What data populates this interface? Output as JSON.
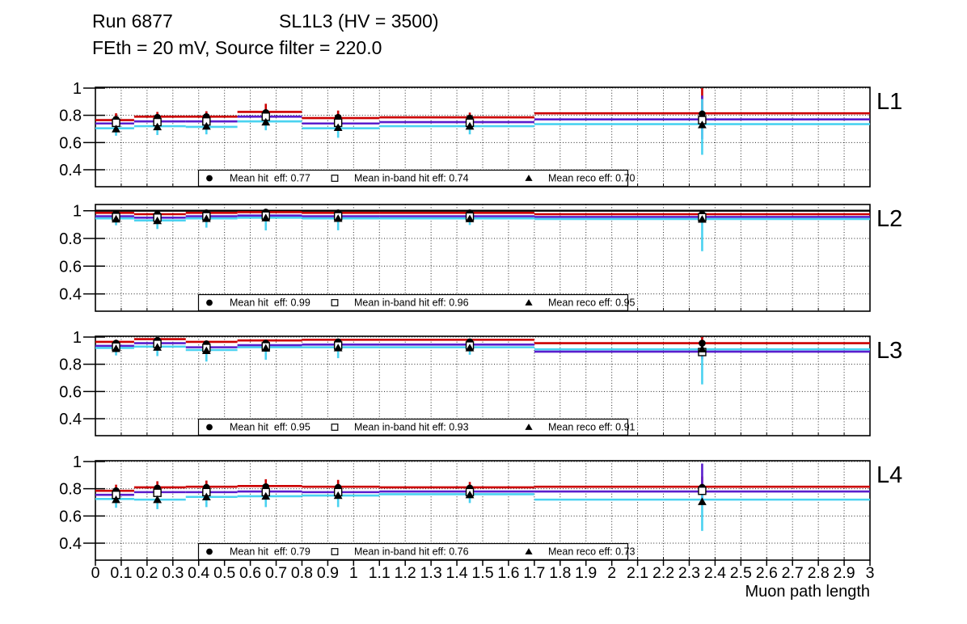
{
  "header": {
    "run": "Run 6877",
    "config": "SL1L3 (HV = 3500)",
    "subtitle": "FEth = 20 mV, Source filter = 220.0"
  },
  "chart_data": {
    "type": "line",
    "title": "Run 6877 SL1L3 (HV = 3500) FEth = 20 mV, Source filter = 220.0",
    "xlabel": "Muon path length",
    "ylabel": "",
    "grid": true,
    "x_range": [
      0,
      3
    ],
    "x_tick_labels": [
      "0",
      "0.1",
      "0.2",
      "0.3",
      "0.4",
      "0.5",
      "0.6",
      "0.7",
      "0.8",
      "0.9",
      "1",
      "1.1",
      "1.2",
      "1.3",
      "1.4",
      "1.5",
      "1.6",
      "1.7",
      "1.8",
      "1.9",
      "2",
      "2.1",
      "2.2",
      "2.3",
      "2.4",
      "2.5",
      "2.6",
      "2.7",
      "2.8",
      "2.9",
      "3"
    ],
    "y_ticks": [
      0.4,
      0.6,
      0.8,
      1
    ],
    "y_tick_labels": [
      "0.4",
      "0.6",
      "0.8",
      "1"
    ],
    "bin_edges": [
      0,
      0.15,
      0.35,
      0.55,
      0.8,
      1.1,
      1.7,
      3.0
    ],
    "marker_x": [
      0.08,
      0.24,
      0.43,
      0.66,
      0.94,
      1.45,
      2.35
    ],
    "series_styles": [
      {
        "name": "hit",
        "marker": "circle",
        "line_color": "#cc0000",
        "marker_color": "#000000"
      },
      {
        "name": "inband",
        "marker": "square",
        "line_color": "#5a1ecd",
        "marker_color": "#000000"
      },
      {
        "name": "reco",
        "marker": "triangle",
        "line_color": "#4ad2f0",
        "marker_color": "#000000"
      }
    ],
    "panels": [
      {
        "label": "L1",
        "y_range": [
          0.275,
          1.006
        ],
        "ref_line": false,
        "legend": [
          {
            "marker": "circle",
            "text": "Mean hit  eff: 0.77"
          },
          {
            "marker": "square",
            "text": "Mean in-band hit eff: 0.74"
          },
          {
            "marker": "triangle",
            "text": "Mean reco eff: 0.70"
          }
        ],
        "series": [
          {
            "name": "hit",
            "line": [
              0.765,
              0.79,
              0.79,
              0.825,
              0.78,
              0.785,
              0.815
            ],
            "y": [
              0.77,
              0.785,
              0.79,
              0.82,
              0.785,
              0.78,
              0.81
            ],
            "elo": [
              0.05,
              0.04,
              0.04,
              0.05,
              0.05,
              0.04,
              0.07
            ],
            "ehi": [
              0.045,
              0.04,
              0.04,
              0.065,
              0.05,
              0.04,
              0.19
            ]
          },
          {
            "name": "inband",
            "line": [
              0.74,
              0.755,
              0.755,
              0.79,
              0.74,
              0.75,
              0.77
            ],
            "y": [
              0.745,
              0.75,
              0.755,
              0.79,
              0.745,
              0.745,
              0.765
            ],
            "elo": [
              0.045,
              0.045,
              0.045,
              0.05,
              0.05,
              0.045,
              0.14
            ],
            "ehi": [
              0.04,
              0.04,
              0.04,
              0.05,
              0.04,
              0.04,
              0.18
            ]
          },
          {
            "name": "reco",
            "line": [
              0.705,
              0.72,
              0.715,
              0.755,
              0.705,
              0.72,
              0.735
            ],
            "y": [
              0.7,
              0.715,
              0.72,
              0.75,
              0.71,
              0.72,
              0.73
            ],
            "elo": [
              0.05,
              0.06,
              0.06,
              0.06,
              0.075,
              0.06,
              0.22
            ],
            "ehi": [
              0.05,
              0.05,
              0.05,
              0.055,
              0.05,
              0.05,
              0.19
            ]
          }
        ]
      },
      {
        "label": "L2",
        "y_range": [
          0.275,
          1.045
        ],
        "ref_line": true,
        "legend": [
          {
            "marker": "circle",
            "text": "Mean hit  eff: 0.99"
          },
          {
            "marker": "square",
            "text": "Mean in-band hit eff: 0.96"
          },
          {
            "marker": "triangle",
            "text": "Mean reco eff: 0.95"
          }
        ],
        "series": [
          {
            "name": "hit",
            "line": [
              0.985,
              0.975,
              0.985,
              0.99,
              0.985,
              0.985,
              0.975
            ],
            "y": [
              0.98,
              0.975,
              0.985,
              0.99,
              0.985,
              0.985,
              0.975
            ],
            "elo": [
              0.02,
              0.02,
              0.012,
              0.01,
              0.012,
              0.012,
              0.025
            ],
            "ehi": [
              0.012,
              0.012,
              0.008,
              0.006,
              0.008,
              0.008,
              0.015
            ]
          },
          {
            "name": "inband",
            "line": [
              0.96,
              0.95,
              0.96,
              0.965,
              0.96,
              0.96,
              0.955
            ],
            "y": [
              0.955,
              0.95,
              0.96,
              0.965,
              0.96,
              0.958,
              0.953
            ],
            "elo": [
              0.025,
              0.03,
              0.02,
              0.018,
              0.018,
              0.018,
              0.035
            ],
            "ehi": [
              0.02,
              0.025,
              0.015,
              0.012,
              0.012,
              0.012,
              0.025
            ]
          },
          {
            "name": "reco",
            "line": [
              0.945,
              0.93,
              0.945,
              0.95,
              0.945,
              0.945,
              0.94
            ],
            "y": [
              0.94,
              0.928,
              0.943,
              0.948,
              0.944,
              0.942,
              0.938
            ],
            "elo": [
              0.045,
              0.06,
              0.065,
              0.09,
              0.085,
              0.045,
              0.23
            ],
            "ehi": [
              0.025,
              0.03,
              0.02,
              0.015,
              0.015,
              0.02,
              0.03
            ]
          }
        ]
      },
      {
        "label": "L3",
        "y_range": [
          0.275,
          1.006
        ],
        "ref_line": false,
        "legend": [
          {
            "marker": "circle",
            "text": "Mean hit  eff: 0.95"
          },
          {
            "marker": "square",
            "text": "Mean in-band hit eff: 0.93"
          },
          {
            "marker": "triangle",
            "text": "Mean reco eff: 0.91"
          }
        ],
        "series": [
          {
            "name": "hit",
            "line": [
              0.965,
              0.985,
              0.965,
              0.975,
              0.98,
              0.98,
              0.955
            ],
            "y": [
              0.955,
              0.975,
              0.95,
              0.955,
              0.965,
              0.965,
              0.955
            ],
            "elo": [
              0.03,
              0.02,
              0.03,
              0.027,
              0.02,
              0.02,
              0.03
            ],
            "ehi": [
              0.025,
              0.015,
              0.025,
              0.02,
              0.014,
              0.014,
              0.045
            ]
          },
          {
            "name": "inband",
            "line": [
              0.935,
              0.955,
              0.925,
              0.94,
              0.945,
              0.945,
              0.893
            ],
            "y": [
              0.93,
              0.95,
              0.92,
              0.932,
              0.938,
              0.938,
              0.89
            ],
            "elo": [
              0.035,
              0.03,
              0.04,
              0.033,
              0.03,
              0.03,
              0.05
            ],
            "ehi": [
              0.03,
              0.025,
              0.035,
              0.03,
              0.025,
              0.025,
              0.055
            ]
          },
          {
            "name": "reco",
            "line": [
              0.92,
              0.93,
              0.905,
              0.925,
              0.925,
              0.925,
              0.91
            ],
            "y": [
              0.915,
              0.925,
              0.9,
              0.918,
              0.92,
              0.92,
              0.912
            ],
            "elo": [
              0.05,
              0.065,
              0.08,
              0.085,
              0.075,
              0.05,
              0.26
            ],
            "ehi": [
              0.035,
              0.035,
              0.045,
              0.04,
              0.035,
              0.035,
              0.05
            ]
          }
        ]
      },
      {
        "label": "L4",
        "y_range": [
          0.275,
          1.006
        ],
        "ref_line": false,
        "legend": [
          {
            "marker": "circle",
            "text": "Mean hit  eff: 0.79"
          },
          {
            "marker": "square",
            "text": "Mean in-band hit eff: 0.76"
          },
          {
            "marker": "triangle",
            "text": "Mean reco eff: 0.73"
          }
        ],
        "series": [
          {
            "name": "hit",
            "line": [
              0.785,
              0.81,
              0.815,
              0.82,
              0.815,
              0.81,
              0.815
            ],
            "y": [
              0.785,
              0.805,
              0.81,
              0.815,
              0.81,
              0.805,
              0.81
            ],
            "elo": [
              0.05,
              0.045,
              0.04,
              0.04,
              0.04,
              0.04,
              0.05
            ],
            "ehi": [
              0.045,
              0.05,
              0.05,
              0.055,
              0.055,
              0.045,
              0.08
            ]
          },
          {
            "name": "inband",
            "line": [
              0.755,
              0.775,
              0.775,
              0.78,
              0.775,
              0.78,
              0.78
            ],
            "y": [
              0.755,
              0.77,
              0.775,
              0.775,
              0.775,
              0.775,
              0.785
            ],
            "elo": [
              0.05,
              0.05,
              0.045,
              0.045,
              0.045,
              0.045,
              0.07
            ],
            "ehi": [
              0.045,
              0.05,
              0.05,
              0.05,
              0.05,
              0.05,
              0.2
            ]
          },
          {
            "name": "reco",
            "line": [
              0.725,
              0.72,
              0.74,
              0.745,
              0.75,
              0.76,
              0.72
            ],
            "y": [
              0.72,
              0.72,
              0.74,
              0.745,
              0.75,
              0.755,
              0.705
            ],
            "elo": [
              0.06,
              0.07,
              0.075,
              0.08,
              0.085,
              0.06,
              0.215
            ],
            "ehi": [
              0.05,
              0.05,
              0.05,
              0.05,
              0.05,
              0.05,
              0.06
            ]
          }
        ]
      }
    ]
  }
}
